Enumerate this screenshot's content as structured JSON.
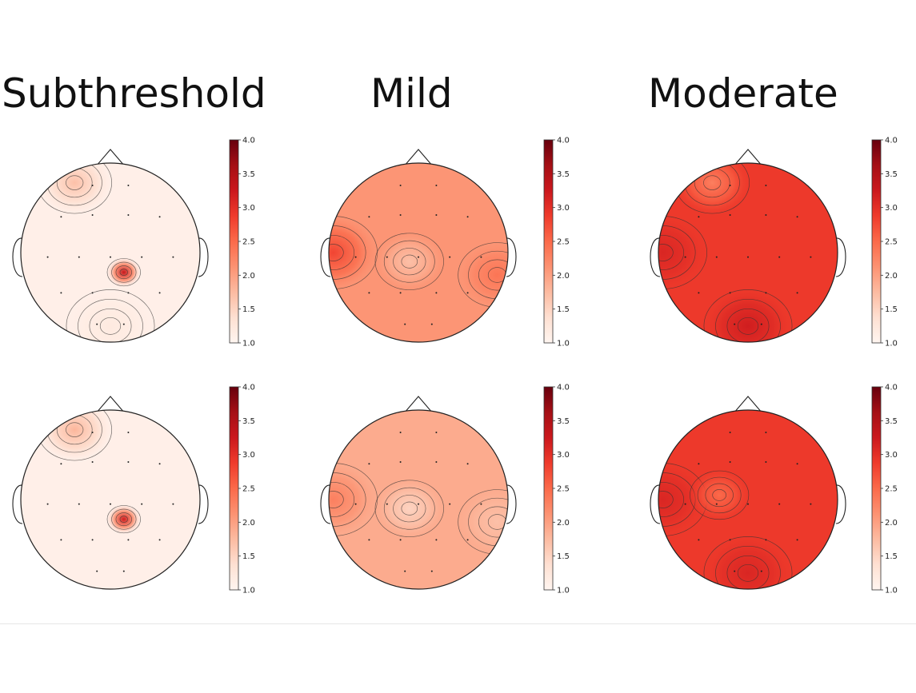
{
  "columns": [
    "Subthreshold",
    "Mild",
    "Moderate"
  ],
  "colorbar": {
    "ticks": [
      "1.0",
      "1.5",
      "2.0",
      "2.5",
      "3.0",
      "3.5",
      "4.0"
    ],
    "range": [
      1.0,
      4.0
    ],
    "colormap": "Reds",
    "low_color": "#fff5f0",
    "high_color": "#67000d"
  },
  "chart_data": {
    "type": "heatmap",
    "description_type": "scalp topographic maps",
    "rows": 2,
    "panels": [
      {
        "column": "Subthreshold",
        "row": 1,
        "baseline": 1.1,
        "blobs": [
          {
            "region": "center-right parietal",
            "peak": 3.3
          },
          {
            "region": "frontal-left",
            "peak": 1.7
          },
          {
            "region": "occipital",
            "peak": 1.2
          }
        ]
      },
      {
        "column": "Mild",
        "row": 1,
        "baseline": 2.1,
        "blobs": [
          {
            "region": "left temporal",
            "peak": 2.8
          },
          {
            "region": "right temporal",
            "peak": 2.4
          },
          {
            "region": "central",
            "peak": 1.7
          }
        ]
      },
      {
        "column": "Moderate",
        "row": 1,
        "baseline": 2.9,
        "blobs": [
          {
            "region": "left temporal",
            "peak": 3.1
          },
          {
            "region": "occipital",
            "peak": 3.2
          },
          {
            "region": "frontal-left",
            "peak": 2.3
          }
        ]
      },
      {
        "column": "Subthreshold",
        "row": 2,
        "baseline": 1.1,
        "blobs": [
          {
            "region": "center-right parietal",
            "peak": 3.2
          },
          {
            "region": "frontal-left",
            "peak": 1.8
          }
        ]
      },
      {
        "column": "Mild",
        "row": 2,
        "baseline": 1.9,
        "blobs": [
          {
            "region": "left temporal",
            "peak": 2.3
          },
          {
            "region": "central",
            "peak": 1.5
          },
          {
            "region": "right temporal",
            "peak": 1.7
          }
        ]
      },
      {
        "column": "Moderate",
        "row": 2,
        "baseline": 2.9,
        "blobs": [
          {
            "region": "left temporal",
            "peak": 3.1
          },
          {
            "region": "central-left",
            "peak": 2.5
          },
          {
            "region": "occipital",
            "peak": 3.1
          }
        ]
      }
    ]
  }
}
